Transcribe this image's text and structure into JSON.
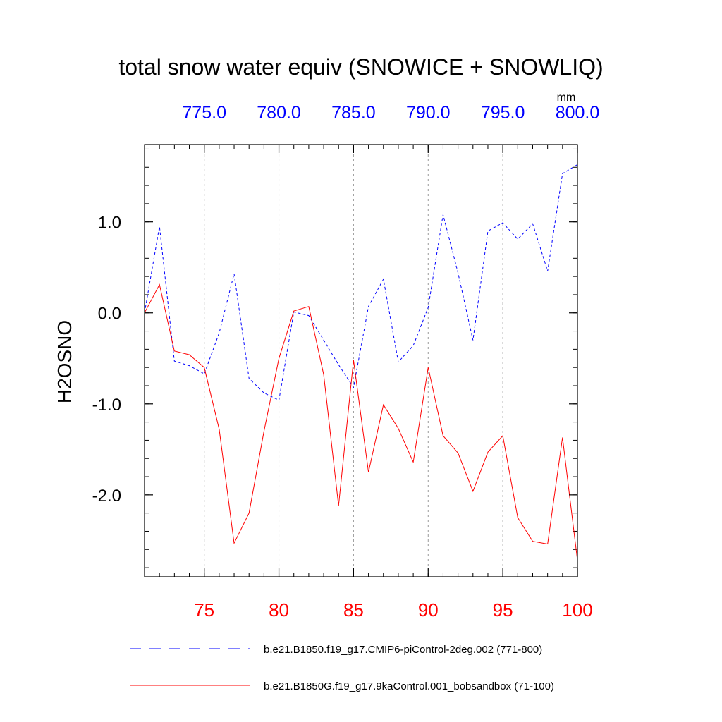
{
  "chart_data": {
    "type": "line",
    "title": "total snow water equiv (SNOWICE + SNOWLIQ)",
    "units": "mm",
    "ylabel": "H2OSNO",
    "ylim": [
      -2.9,
      1.85
    ],
    "y_ticks": [
      {
        "value": 1.0,
        "label": "1.0"
      },
      {
        "value": 0.0,
        "label": "0.0"
      },
      {
        "value": -1.0,
        "label": "-1.0"
      },
      {
        "value": -2.0,
        "label": "-2.0"
      }
    ],
    "bottom_axis": {
      "range": [
        71,
        100
      ],
      "color": "#ff0000",
      "ticks": [
        {
          "value": 75,
          "label": "75"
        },
        {
          "value": 80,
          "label": "80"
        },
        {
          "value": 85,
          "label": "85"
        },
        {
          "value": 90,
          "label": "90"
        },
        {
          "value": 95,
          "label": "95"
        },
        {
          "value": 100,
          "label": "100"
        }
      ]
    },
    "top_axis": {
      "range": [
        771,
        800
      ],
      "color": "#0000ff",
      "ticks": [
        {
          "value": 775,
          "label": "775.0"
        },
        {
          "value": 780,
          "label": "780.0"
        },
        {
          "value": 785,
          "label": "785.0"
        },
        {
          "value": 790,
          "label": "790.0"
        },
        {
          "value": 795,
          "label": "795.0"
        },
        {
          "value": 800,
          "label": "800.0"
        }
      ]
    },
    "series": [
      {
        "name": "b.e21.B1850.f19_g17.CMIP6-piControl-2deg.002 (771-800)",
        "color": "#0000ff",
        "dash": "dashed",
        "axis": "top",
        "x": [
          771,
          772,
          773,
          774,
          775,
          776,
          777,
          778,
          779,
          780,
          781,
          782,
          783,
          784,
          785,
          786,
          787,
          788,
          789,
          790,
          791,
          792,
          793,
          794,
          795,
          796,
          797,
          798,
          799,
          800
        ],
        "values": [
          0.0,
          0.95,
          -0.53,
          -0.58,
          -0.67,
          -0.22,
          0.43,
          -0.72,
          -0.88,
          -0.96,
          0.01,
          -0.03,
          -0.3,
          -0.57,
          -0.82,
          0.07,
          0.37,
          -0.54,
          -0.36,
          0.06,
          1.08,
          0.44,
          -0.3,
          0.9,
          0.99,
          0.81,
          0.98,
          0.46,
          1.53,
          1.63
        ]
      },
      {
        "name": "b.e21.B1850G.f19_g17.9kaControl.001_bobsandbox (71-100)",
        "color": "#ff0000",
        "dash": "solid",
        "axis": "bottom",
        "x": [
          71,
          72,
          73,
          74,
          75,
          76,
          77,
          78,
          79,
          80,
          81,
          82,
          83,
          84,
          85,
          86,
          87,
          88,
          89,
          90,
          91,
          92,
          93,
          94,
          95,
          96,
          97,
          98,
          99,
          100
        ],
        "values": [
          0.0,
          0.31,
          -0.42,
          -0.46,
          -0.6,
          -1.28,
          -2.53,
          -2.2,
          -1.3,
          -0.5,
          0.02,
          0.07,
          -0.68,
          -2.12,
          -0.52,
          -1.75,
          -1.01,
          -1.27,
          -1.64,
          -0.6,
          -1.35,
          -1.54,
          -1.96,
          -1.53,
          -1.35,
          -2.25,
          -2.51,
          -2.54,
          -1.37,
          -2.72
        ]
      }
    ]
  }
}
